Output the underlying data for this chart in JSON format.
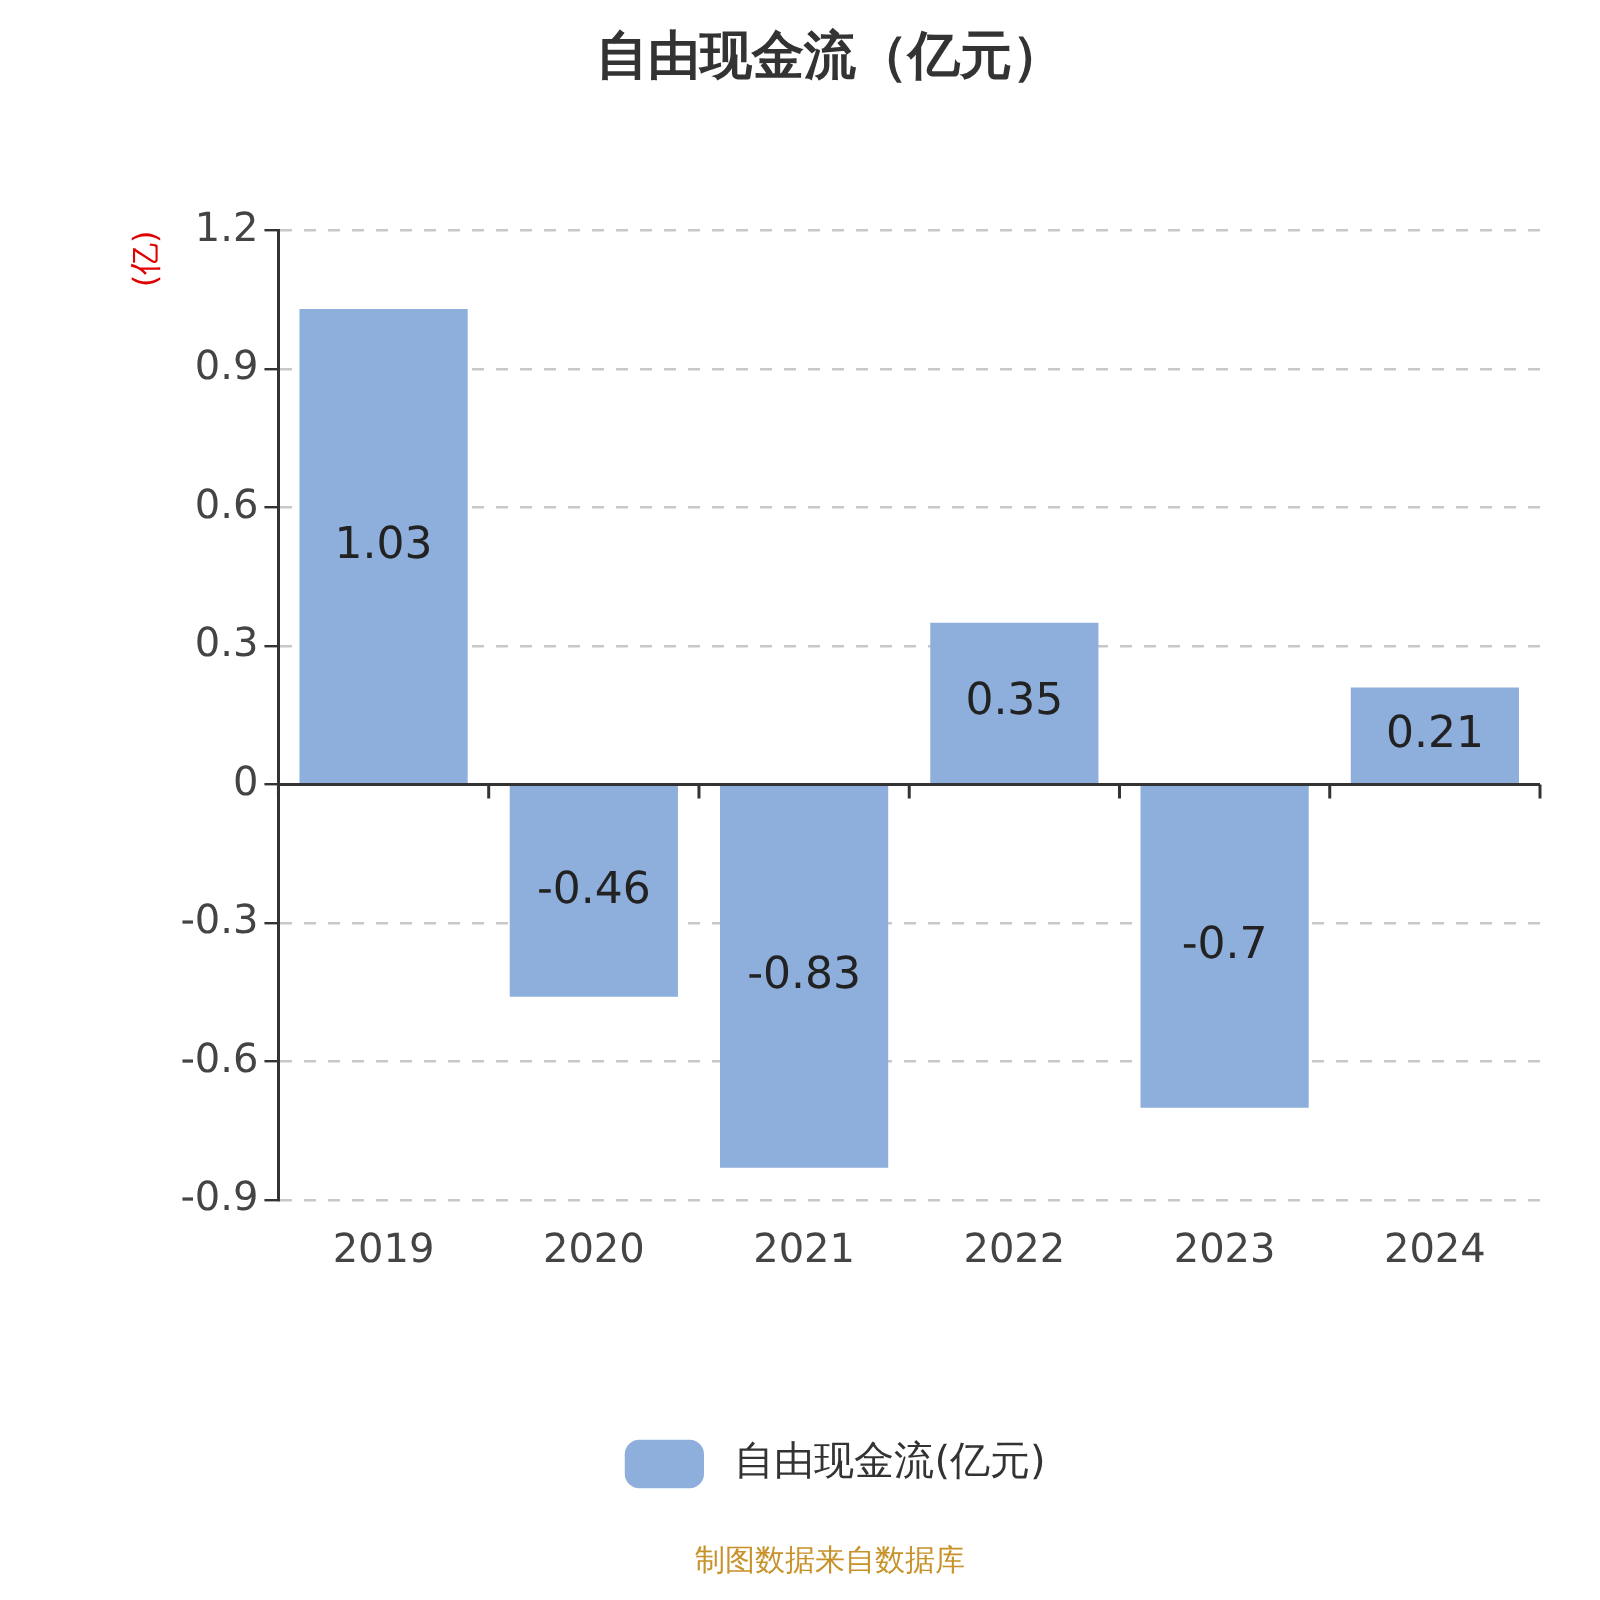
{
  "chart_data": {
    "type": "bar",
    "title": "自由现金流（亿元）",
    "ylabel": "(亿)",
    "categories": [
      "2019",
      "2020",
      "2021",
      "2022",
      "2023",
      "2024"
    ],
    "series": [
      {
        "name": "自由现金流(亿元)",
        "color": "#8eaedb",
        "values": [
          1.03,
          -0.46,
          -0.83,
          0.35,
          -0.7,
          0.21
        ]
      }
    ],
    "ylim": [
      -0.9,
      1.2
    ],
    "yticks": [
      {
        "value": -0.9,
        "label": "-0.9"
      },
      {
        "value": -0.6,
        "label": "-0.6"
      },
      {
        "value": -0.3,
        "label": "-0.3"
      },
      0,
      {
        "value": 0.3,
        "label": "0.3"
      },
      {
        "value": 0.6,
        "label": "0.6"
      },
      {
        "value": 0.9,
        "label": "0.9"
      },
      {
        "value": 1.2,
        "label": "1.2"
      }
    ],
    "grid": "y",
    "legend": "bottom",
    "data_labels": true,
    "annotations": [
      "制图数据来自数据库"
    ]
  }
}
